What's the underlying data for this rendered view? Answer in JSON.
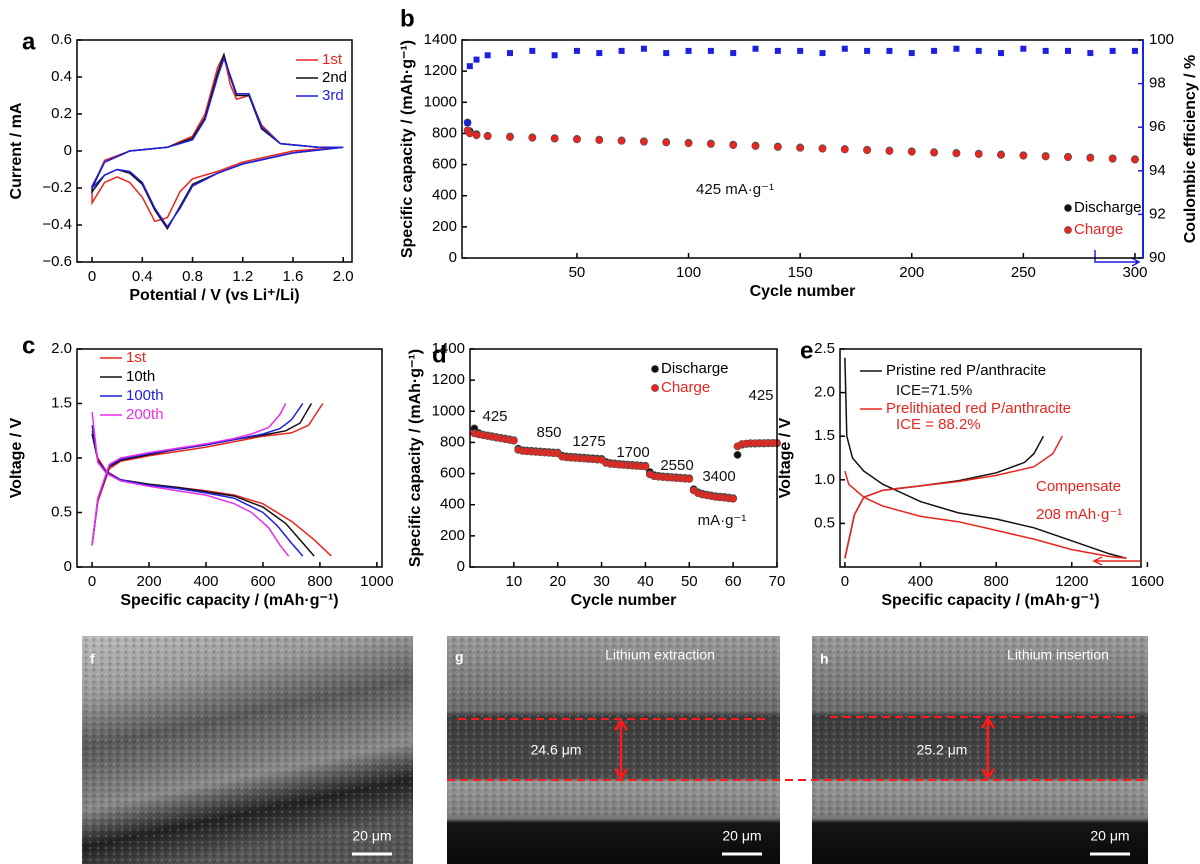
{
  "chart_data": [
    {
      "type": "line",
      "panel": "a",
      "xlabel": "Potential / V (vs Li⁺/Li)",
      "ylabel": "Current / mA",
      "xlim": [
        -0.12,
        2.07
      ],
      "ylim": [
        -0.6,
        0.6
      ],
      "xticks": [
        0,
        0.4,
        0.8,
        1.2,
        1.6,
        {
          "value": 2.0,
          "label": "2.0"
        }
      ],
      "yticks": [
        {
          "value": -0.6,
          "label": "−0.6"
        },
        {
          "value": -0.4,
          "label": "−0.4"
        },
        {
          "value": -0.2,
          "label": "−0.2"
        },
        0,
        0.2,
        0.4,
        0.6
      ],
      "x": [
        2.0,
        1.6,
        1.2,
        1.0,
        0.8,
        0.7,
        0.6,
        0.5,
        0.4,
        0.3,
        0.2,
        0.1,
        0,
        0,
        0.1,
        0.3,
        0.6,
        0.8,
        0.9,
        1.0,
        1.05,
        1.1,
        1.15,
        1.25,
        1.35,
        1.5,
        1.8,
        2.0
      ],
      "series": [
        {
          "name": "1st",
          "color": "#e8251f",
          "values": [
            0.02,
            0,
            -0.06,
            -0.11,
            -0.15,
            -0.22,
            -0.36,
            -0.38,
            -0.25,
            -0.17,
            -0.14,
            -0.17,
            -0.28,
            -0.2,
            -0.05,
            0,
            0.02,
            0.08,
            0.2,
            0.45,
            0.52,
            0.36,
            0.28,
            0.3,
            0.14,
            0.04,
            0.02,
            0.02
          ]
        },
        {
          "name": "2nd",
          "color": "#111111",
          "values": [
            0.02,
            -0.01,
            -0.07,
            -0.12,
            -0.18,
            -0.3,
            -0.42,
            -0.32,
            -0.18,
            -0.12,
            -0.1,
            -0.13,
            -0.22,
            -0.2,
            -0.06,
            0,
            0.02,
            0.07,
            0.18,
            0.42,
            0.52,
            0.4,
            0.3,
            0.3,
            0.12,
            0.04,
            0.02,
            0.02
          ]
        },
        {
          "name": "3rd",
          "color": "#1f1fe0",
          "values": [
            0.02,
            -0.01,
            -0.07,
            -0.12,
            -0.19,
            -0.31,
            -0.41,
            -0.31,
            -0.17,
            -0.11,
            -0.1,
            -0.13,
            -0.2,
            -0.19,
            -0.06,
            0,
            0.02,
            0.06,
            0.17,
            0.4,
            0.5,
            0.41,
            0.31,
            0.31,
            0.13,
            0.04,
            0.02,
            0.02
          ]
        }
      ]
    },
    {
      "type": "scatter",
      "panel": "b",
      "xlabel": "Cycle number",
      "ylabel": "Specific capacity / (mAh·g⁻¹)",
      "y2label": "Coulombic efficiency / %",
      "xlim": [
        -1.5,
        303.6
      ],
      "ylim": [
        0,
        1400
      ],
      "y2lim": [
        90,
        100
      ],
      "xticks": [
        50,
        100,
        150,
        200,
        250,
        300
      ],
      "yticks": [
        0,
        200,
        400,
        600,
        800,
        1000,
        1200,
        1400
      ],
      "y2ticks": [
        90,
        92,
        94,
        96,
        98,
        100
      ],
      "annotations": [
        "425 mA·g⁻¹"
      ],
      "x": [
        1,
        2,
        5,
        10,
        20,
        30,
        40,
        50,
        60,
        70,
        80,
        90,
        100,
        110,
        120,
        130,
        140,
        150,
        160,
        170,
        180,
        190,
        200,
        210,
        220,
        230,
        240,
        250,
        260,
        270,
        280,
        290,
        300
      ],
      "series": [
        {
          "name": "Discharge",
          "color": "#111111",
          "marker": "circle",
          "values": [
            870,
            815,
            795,
            785,
            780,
            775,
            770,
            765,
            760,
            755,
            750,
            745,
            740,
            735,
            728,
            722,
            716,
            710,
            705,
            700,
            695,
            690,
            685,
            680,
            675,
            670,
            665,
            660,
            655,
            650,
            645,
            640,
            635
          ]
        },
        {
          "name": "Charge",
          "color": "#e8251f",
          "marker": "circle",
          "values": [
            820,
            800,
            788,
            782,
            777,
            772,
            767,
            762,
            757,
            752,
            747,
            742,
            737,
            732,
            725,
            719,
            713,
            707,
            702,
            697,
            692,
            687,
            682,
            677,
            672,
            667,
            662,
            657,
            652,
            647,
            642,
            637,
            632
          ]
        },
        {
          "color": "#1f1fe0",
          "marker": "square",
          "axis": "y2",
          "values": [
            96.2,
            98.8,
            99.1,
            99.3,
            99.4,
            99.5,
            99.3,
            99.5,
            99.4,
            99.5,
            99.6,
            99.4,
            99.5,
            99.5,
            99.4,
            99.6,
            99.5,
            99.5,
            99.4,
            99.6,
            99.5,
            99.5,
            99.4,
            99.5,
            99.6,
            99.5,
            99.4,
            99.6,
            99.5,
            99.5,
            99.4,
            99.5,
            99.5
          ]
        }
      ]
    },
    {
      "type": "line",
      "panel": "c",
      "xlabel": "Specific capacity / (mAh·g⁻¹)",
      "ylabel": "Voltage / V",
      "xlim": [
        -53,
        1018
      ],
      "ylim": [
        0,
        2.0
      ],
      "xticks": [
        0,
        200,
        400,
        600,
        800,
        1000
      ],
      "yticks": [
        0,
        0.5,
        {
          "value": 1.0,
          "label": "1.0"
        },
        1.5,
        {
          "value": 2.0,
          "label": "2.0"
        }
      ],
      "series": [
        {
          "name": "1st",
          "color": "#e8251f",
          "x": [
            0,
            20,
            50,
            100,
            200,
            300,
            400,
            500,
            600,
            700,
            780,
            840,
            null,
            0,
            20,
            60,
            100,
            200,
            300,
            400,
            500,
            600,
            700,
            760,
            810
          ],
          "values": [
            1.25,
            1.0,
            0.88,
            0.8,
            0.76,
            0.73,
            0.7,
            0.66,
            0.58,
            0.42,
            0.25,
            0.1,
            null,
            0.2,
            0.6,
            0.9,
            0.97,
            1.02,
            1.06,
            1.1,
            1.15,
            1.2,
            1.23,
            1.3,
            1.5
          ]
        },
        {
          "name": "10th",
          "color": "#111111",
          "x": [
            0,
            20,
            50,
            100,
            200,
            300,
            400,
            500,
            600,
            680,
            740,
            780,
            null,
            0,
            20,
            60,
            100,
            200,
            300,
            400,
            500,
            600,
            680,
            730,
            770
          ],
          "values": [
            1.22,
            0.98,
            0.87,
            0.8,
            0.76,
            0.73,
            0.69,
            0.65,
            0.55,
            0.4,
            0.22,
            0.1,
            null,
            0.2,
            0.62,
            0.92,
            0.98,
            1.03,
            1.08,
            1.12,
            1.17,
            1.21,
            1.25,
            1.32,
            1.5
          ]
        },
        {
          "name": "100th",
          "color": "#1f1fe0",
          "x": [
            0,
            20,
            50,
            100,
            200,
            300,
            400,
            500,
            600,
            650,
            700,
            740,
            null,
            0,
            20,
            60,
            100,
            200,
            300,
            400,
            500,
            600,
            660,
            700,
            740
          ],
          "values": [
            1.3,
            0.97,
            0.87,
            0.8,
            0.75,
            0.72,
            0.68,
            0.63,
            0.5,
            0.38,
            0.22,
            0.1,
            null,
            0.2,
            0.62,
            0.93,
            0.99,
            1.04,
            1.08,
            1.12,
            1.17,
            1.22,
            1.27,
            1.35,
            1.5
          ]
        },
        {
          "name": "200th",
          "color": "#e830e8",
          "x": [
            0,
            20,
            50,
            100,
            200,
            300,
            400,
            500,
            560,
            620,
            660,
            690,
            null,
            0,
            20,
            60,
            100,
            200,
            300,
            400,
            500,
            560,
            620,
            660,
            680
          ],
          "values": [
            1.42,
            0.96,
            0.86,
            0.79,
            0.74,
            0.7,
            0.66,
            0.58,
            0.5,
            0.36,
            0.2,
            0.1,
            null,
            0.2,
            0.63,
            0.94,
            1.0,
            1.05,
            1.09,
            1.13,
            1.18,
            1.22,
            1.28,
            1.4,
            1.5
          ]
        }
      ]
    },
    {
      "type": "scatter",
      "panel": "d",
      "xlabel": "Cycle number",
      "ylabel": "Specific capacity / (mAh·g⁻¹)",
      "xlim": [
        0,
        70
      ],
      "ylim": [
        0,
        1400
      ],
      "xticks": [
        10,
        20,
        30,
        40,
        50,
        60,
        70
      ],
      "yticks": [
        0,
        200,
        400,
        600,
        800,
        1000,
        1200,
        1400
      ],
      "annotations": [
        "425",
        "850",
        "1275",
        "1700",
        "2550",
        "3400",
        "mA·g⁻¹",
        "425"
      ],
      "x": [
        1,
        2,
        3,
        4,
        5,
        6,
        7,
        8,
        9,
        10,
        11,
        12,
        13,
        14,
        15,
        16,
        17,
        18,
        19,
        20,
        21,
        22,
        23,
        24,
        25,
        26,
        27,
        28,
        29,
        30,
        31,
        32,
        33,
        34,
        35,
        36,
        37,
        38,
        39,
        40,
        41,
        42,
        43,
        44,
        45,
        46,
        47,
        48,
        49,
        50,
        51,
        52,
        53,
        54,
        55,
        56,
        57,
        58,
        59,
        60,
        61,
        62,
        63,
        64,
        65,
        66,
        67,
        68,
        69,
        70
      ],
      "series": [
        {
          "name": "Discharge",
          "color": "#111111",
          "marker": "circle",
          "values": [
            890,
            860,
            850,
            845,
            840,
            835,
            830,
            825,
            820,
            815,
            760,
            750,
            748,
            746,
            744,
            742,
            740,
            738,
            736,
            735,
            715,
            710,
            708,
            706,
            704,
            702,
            700,
            698,
            696,
            694,
            675,
            668,
            665,
            662,
            660,
            658,
            656,
            654,
            652,
            650,
            610,
            590,
            585,
            582,
            580,
            578,
            576,
            574,
            572,
            570,
            500,
            480,
            470,
            465,
            460,
            455,
            452,
            450,
            446,
            442,
            720,
            785,
            790,
            792,
            792,
            793,
            793,
            794,
            794,
            794
          ]
        },
        {
          "name": "Charge",
          "color": "#e8251f",
          "marker": "circle",
          "values": [
            858,
            852,
            846,
            841,
            836,
            831,
            826,
            821,
            816,
            811,
            752,
            745,
            743,
            741,
            739,
            737,
            735,
            733,
            731,
            730,
            708,
            704,
            702,
            700,
            698,
            696,
            694,
            692,
            690,
            688,
            668,
            662,
            660,
            657,
            655,
            653,
            651,
            649,
            647,
            645,
            595,
            583,
            580,
            577,
            575,
            573,
            571,
            569,
            567,
            565,
            492,
            474,
            465,
            460,
            455,
            450,
            447,
            445,
            441,
            438,
            775,
            790,
            793,
            795,
            795,
            796,
            796,
            797,
            797,
            797
          ]
        }
      ]
    },
    {
      "type": "line",
      "panel": "e",
      "xlabel": "Specific capacity / (mAh·g⁻¹)",
      "ylabel": "Voltage / V",
      "xlim": [
        -26,
        1566
      ],
      "ylim": [
        0,
        2.5
      ],
      "xticks": [
        0,
        400,
        800,
        1200,
        1600
      ],
      "yticks": [
        0.5,
        {
          "value": 1.0,
          "label": "1.0"
        },
        1.5,
        {
          "value": 2.0,
          "label": "2.0"
        },
        2.5
      ],
      "annotations": [
        "ICE=71.5%",
        "ICE = 88.2%",
        "Compensate",
        "208 mAh·g⁻¹"
      ],
      "series": [
        {
          "name": "Pristine red P/anthracite",
          "color": "#111111",
          "x": [
            0,
            10,
            40,
            100,
            200,
            400,
            600,
            800,
            1000,
            1200,
            1400,
            1490,
            null,
            0,
            50,
            100,
            200,
            400,
            600,
            800,
            950,
            1000,
            1050
          ],
          "values": [
            2.4,
            1.5,
            1.25,
            1.1,
            0.95,
            0.75,
            0.62,
            0.55,
            0.45,
            0.3,
            0.15,
            0.1,
            null,
            0.1,
            0.6,
            0.8,
            0.88,
            0.93,
            0.99,
            1.08,
            1.2,
            1.3,
            1.5
          ]
        },
        {
          "name": "Prelithiated red P/anthracite",
          "color": "#e8251f",
          "x": [
            0,
            20,
            100,
            200,
            400,
            600,
            800,
            1000,
            1200,
            1400,
            1490,
            null,
            0,
            50,
            100,
            200,
            400,
            600,
            800,
            1000,
            1100,
            1150
          ],
          "values": [
            1.1,
            0.95,
            0.8,
            0.7,
            0.58,
            0.52,
            0.42,
            0.32,
            0.2,
            0.12,
            0.1,
            null,
            0.1,
            0.6,
            0.8,
            0.88,
            0.93,
            0.98,
            1.05,
            1.15,
            1.3,
            1.5
          ]
        }
      ]
    }
  ],
  "images": [
    {
      "panel": "f",
      "scale_bar": "20 μm"
    },
    {
      "panel": "g",
      "label": "Lithium extraction",
      "thickness": "24.6 μm",
      "scale_bar": "20 μm"
    },
    {
      "panel": "h",
      "label": "Lithium insertion",
      "thickness": "25.2 μm",
      "scale_bar": "20 μm"
    }
  ]
}
